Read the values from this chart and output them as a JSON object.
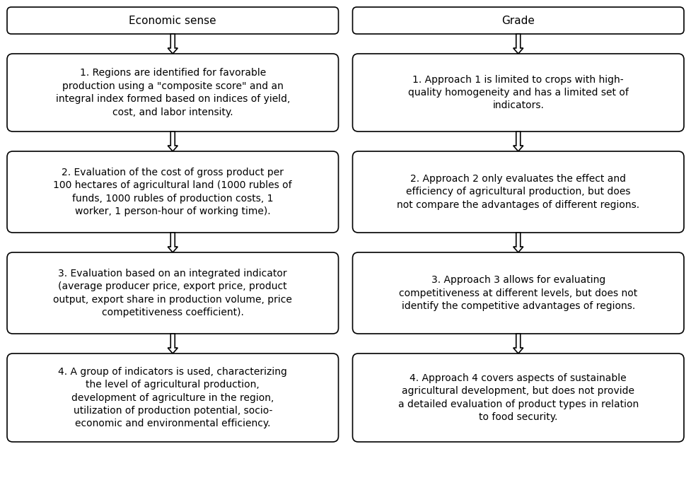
{
  "title": "",
  "background_color": "#ffffff",
  "headers": [
    "Economic sense",
    "Grade"
  ],
  "left_boxes": [
    "1. Regions are identified for favorable\nproduction using a \"composite score\" and an\nintegral index formed based on indices of yield,\ncost, and labor intensity.",
    "2. Evaluation of the cost of gross product per\n100 hectares of agricultural land (1000 rubles of\nfunds, 1000 rubles of production costs, 1\nworker, 1 person-hour of working time).",
    "3. Evaluation based on an integrated indicator\n(average producer price, export price, product\noutput, export share in production volume, price\ncompetitiveness coefficient).",
    "4. A group of indicators is used, characterizing\nthe level of agricultural production,\ndevelopment of agriculture in the region,\nutilization of production potential, socio-\neconomic and environmental efficiency."
  ],
  "right_boxes": [
    "1. Approach 1 is limited to crops with high-\nquality homogeneity and has a limited set of\nindicators.",
    "2. Approach 2 only evaluates the effect and\nefficiency of agricultural production, but does\nnot compare the advantages of different regions.",
    "3. Approach 3 allows for evaluating\ncompetitiveness at different levels, but does not\nidentify the competitive advantages of regions.",
    "4. Approach 4 covers aspects of sustainable\nagricultural development, but does not provide\na detailed evaluation of product types in relation\nto food security."
  ],
  "box_edge_color": "#000000",
  "box_face_color": "#ffffff",
  "text_color": "#000000",
  "arrow_color": "#000000",
  "font_size": 10,
  "header_font_size": 11
}
